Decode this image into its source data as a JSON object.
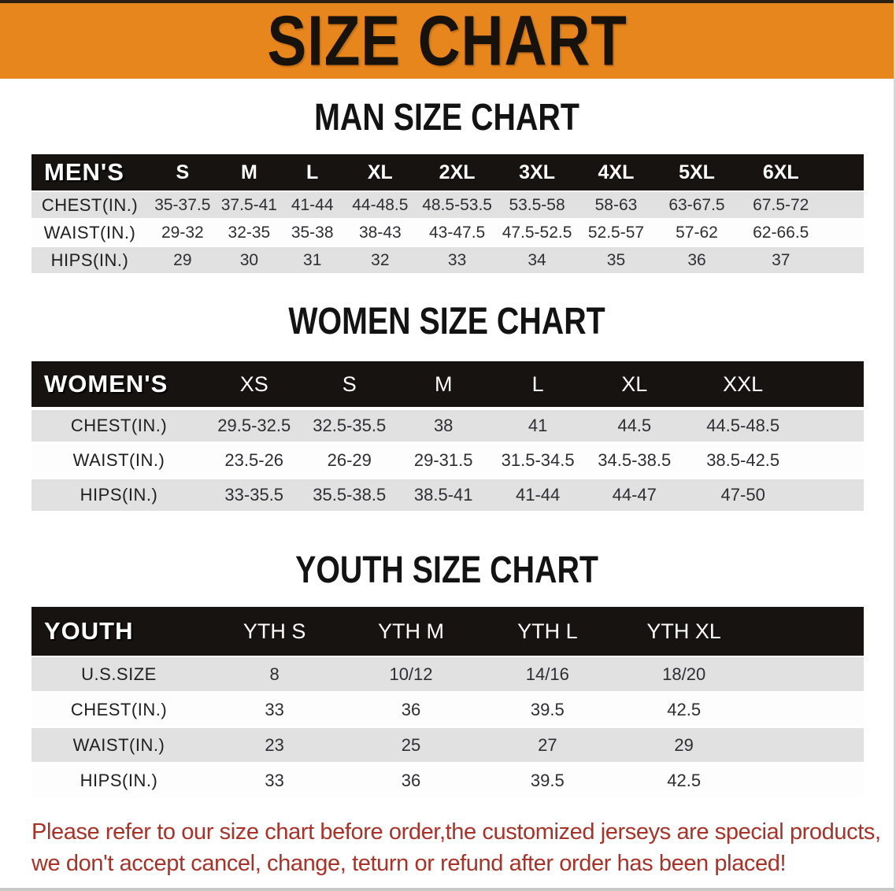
{
  "banner": {
    "title": "SIZE CHART",
    "bg_color": "#e8861e",
    "text_color": "#18120c"
  },
  "sections": [
    {
      "id": "men",
      "title": "MAN SIZE CHART",
      "table": {
        "label": "MEN'S",
        "columns": [
          "S",
          "M",
          "L",
          "XL",
          "2XL",
          "3XL",
          "4XL",
          "5XL",
          "6XL"
        ],
        "rows": [
          {
            "label": "CHEST(IN.)",
            "values": [
              "35-37.5",
              "37.5-41",
              "41-44",
              "44-48.5",
              "48.5-53.5",
              "53.5-58",
              "58-63",
              "63-67.5",
              "67.5-72"
            ]
          },
          {
            "label": "WAIST(IN.)",
            "values": [
              "29-32",
              "32-35",
              "35-38",
              "38-43",
              "43-47.5",
              "47.5-52.5",
              "52.5-57",
              "57-62",
              "62-66.5"
            ]
          },
          {
            "label": "HIPS(IN.)",
            "values": [
              "29",
              "30",
              "31",
              "32",
              "33",
              "34",
              "35",
              "36",
              "37"
            ]
          }
        ]
      }
    },
    {
      "id": "women",
      "title": "WOMEN SIZE CHART",
      "table": {
        "label": "WOMEN'S",
        "columns": [
          "XS",
          "S",
          "M",
          "L",
          "XL",
          "XXL"
        ],
        "rows": [
          {
            "label": "CHEST(IN.)",
            "values": [
              "29.5-32.5",
              "32.5-35.5",
              "38",
              "41",
              "44.5",
              "44.5-48.5"
            ]
          },
          {
            "label": "WAIST(IN.)",
            "values": [
              "23.5-26",
              "26-29",
              "29-31.5",
              "31.5-34.5",
              "34.5-38.5",
              "38.5-42.5"
            ]
          },
          {
            "label": "HIPS(IN.)",
            "values": [
              "33-35.5",
              "35.5-38.5",
              "38.5-41",
              "41-44",
              "44-47",
              "47-50"
            ]
          }
        ]
      }
    },
    {
      "id": "youth",
      "title": "YOUTH SIZE CHART",
      "table": {
        "label": "YOUTH",
        "columns": [
          "YTH S",
          "YTH M",
          "YTH L",
          "YTH XL"
        ],
        "rows": [
          {
            "label": "U.S.SIZE",
            "values": [
              "8",
              "10/12",
              "14/16",
              "18/20"
            ]
          },
          {
            "label": "CHEST(IN.)",
            "values": [
              "33",
              "36",
              "39.5",
              "42.5"
            ]
          },
          {
            "label": "WAIST(IN.)",
            "values": [
              "23",
              "25",
              "27",
              "29"
            ]
          },
          {
            "label": "HIPS(IN.)",
            "values": [
              "33",
              "36",
              "39.5",
              "42.5"
            ]
          }
        ]
      }
    }
  ],
  "disclaimer": {
    "line1": "Please refer to our size chart before order,the customized jerseys are special products,",
    "line2": "we don't accept cancel, change, teturn or refund after order has been placed!",
    "color": "#a93228"
  },
  "colors": {
    "banner_orange": "#e8861e",
    "header_black": "#161310",
    "row_gray": "#e1e1e1",
    "row_white": "#fdfdfd",
    "disclaimer_red": "#a93228"
  }
}
